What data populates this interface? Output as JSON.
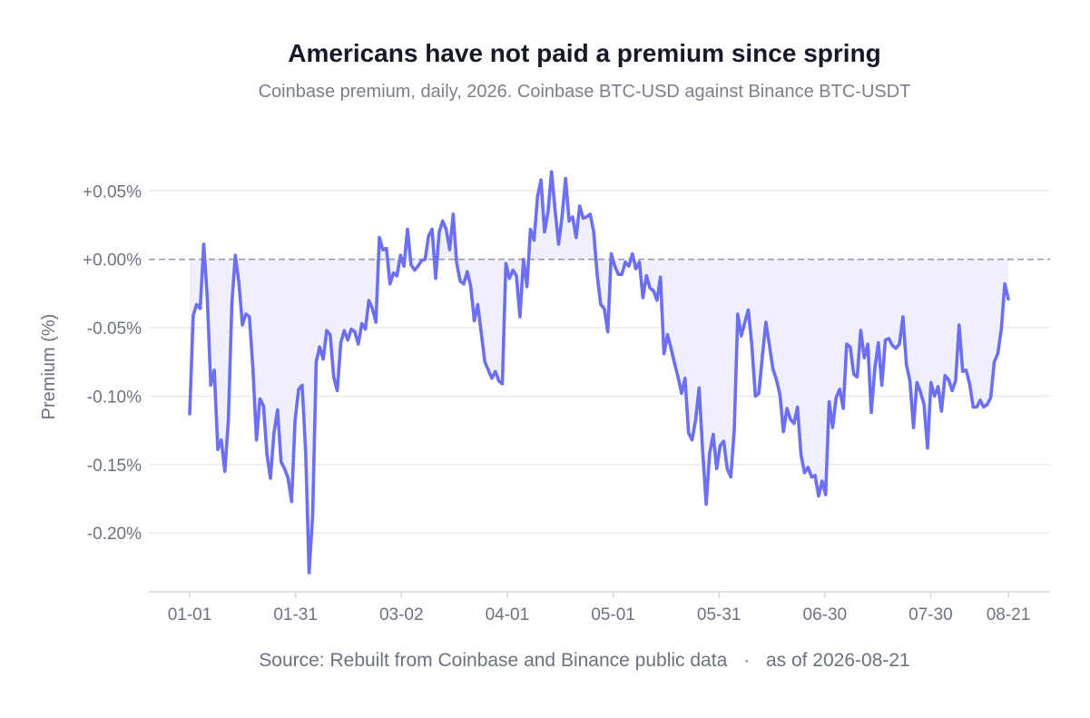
{
  "chart_data": {
    "type": "area",
    "title": "Americans have not paid a premium since spring",
    "subtitle": "Coinbase premium, daily, 2026. Coinbase BTC-USD against Binance BTC-USDT",
    "xlabel": "",
    "ylabel": "Premium (%)",
    "source": "Source: Rebuilt from Coinbase and Binance public data",
    "as_of": "as of 2026-08-21",
    "source_separator": "·",
    "x_start": "2026-01-01",
    "x_end": "2026-08-21",
    "xlim": [
      "2026-01-01",
      "2026-08-21"
    ],
    "ylim": [
      -0.243,
      0.09
    ],
    "x_ticks": [
      {
        "date": "2026-01-01",
        "label": "01-01"
      },
      {
        "date": "2026-01-31",
        "label": "01-31"
      },
      {
        "date": "2026-03-02",
        "label": "03-02"
      },
      {
        "date": "2026-04-01",
        "label": "04-01"
      },
      {
        "date": "2026-05-01",
        "label": "05-01"
      },
      {
        "date": "2026-05-31",
        "label": "05-31"
      },
      {
        "date": "2026-06-30",
        "label": "06-30"
      },
      {
        "date": "2026-07-30",
        "label": "07-30"
      },
      {
        "date": "2026-08-21",
        "label": "08-21"
      }
    ],
    "y_ticks": [
      {
        "value": 0.05,
        "label": "+0.05%"
      },
      {
        "value": 0.0,
        "label": "+0.00%"
      },
      {
        "value": -0.05,
        "label": "-0.05%"
      },
      {
        "value": -0.1,
        "label": "-0.10%"
      },
      {
        "value": -0.15,
        "label": "-0.15%"
      },
      {
        "value": -0.2,
        "label": "-0.20%"
      }
    ],
    "grid": true,
    "reference_line": 0,
    "colors": {
      "line": "#6c6ff0",
      "fill": "#f0f0fc",
      "zero_line": "#9a9ab2",
      "grid": "#e9eaee",
      "axis": "#d5d7dc",
      "tick_text": "#6b7280",
      "title": "#151a26",
      "subtitle": "#7b7f8a"
    },
    "series": [
      {
        "values": [
          -0.113,
          -0.041,
          -0.033,
          -0.036,
          0.011,
          -0.028,
          -0.092,
          -0.081,
          -0.139,
          -0.132,
          -0.155,
          -0.118,
          -0.032,
          0.003,
          -0.017,
          -0.048,
          -0.04,
          -0.042,
          -0.08,
          -0.132,
          -0.102,
          -0.107,
          -0.143,
          -0.16,
          -0.127,
          -0.11,
          -0.148,
          -0.153,
          -0.16,
          -0.177,
          -0.118,
          -0.095,
          -0.092,
          -0.141,
          -0.229,
          -0.187,
          -0.075,
          -0.064,
          -0.073,
          -0.052,
          -0.055,
          -0.086,
          -0.096,
          -0.061,
          -0.052,
          -0.059,
          -0.051,
          -0.053,
          -0.062,
          -0.047,
          -0.051,
          -0.03,
          -0.036,
          -0.046,
          0.016,
          0.007,
          0.008,
          -0.018,
          -0.01,
          -0.012,
          0.003,
          -0.005,
          0.022,
          -0.004,
          -0.008,
          -0.005,
          -0.001,
          0.0,
          0.017,
          0.022,
          -0.014,
          0.02,
          0.028,
          0.022,
          0.007,
          0.033,
          -0.003,
          -0.016,
          -0.018,
          -0.009,
          -0.02,
          -0.045,
          -0.033,
          -0.054,
          -0.075,
          -0.081,
          -0.087,
          -0.082,
          -0.089,
          -0.091,
          -0.003,
          -0.014,
          -0.008,
          -0.012,
          -0.042,
          0.0,
          -0.02,
          0.022,
          0.014,
          0.046,
          0.058,
          0.02,
          0.035,
          0.064,
          0.036,
          0.011,
          0.032,
          0.059,
          0.028,
          0.031,
          0.016,
          0.039,
          0.03,
          0.031,
          0.033,
          0.02,
          -0.012,
          -0.033,
          -0.036,
          -0.053,
          0.004,
          -0.005,
          -0.011,
          -0.011,
          -0.002,
          -0.005,
          0.004,
          -0.007,
          -0.002,
          -0.028,
          -0.012,
          -0.021,
          -0.023,
          -0.03,
          -0.013,
          -0.069,
          -0.055,
          -0.065,
          -0.076,
          -0.086,
          -0.098,
          -0.087,
          -0.127,
          -0.132,
          -0.117,
          -0.094,
          -0.14,
          -0.179,
          -0.142,
          -0.128,
          -0.153,
          -0.136,
          -0.133,
          -0.153,
          -0.159,
          -0.125,
          -0.04,
          -0.056,
          -0.046,
          -0.037,
          -0.063,
          -0.1,
          -0.098,
          -0.071,
          -0.046,
          -0.063,
          -0.08,
          -0.088,
          -0.099,
          -0.126,
          -0.109,
          -0.117,
          -0.12,
          -0.108,
          -0.143,
          -0.156,
          -0.152,
          -0.159,
          -0.158,
          -0.173,
          -0.162,
          -0.172,
          -0.104,
          -0.123,
          -0.101,
          -0.095,
          -0.109,
          -0.062,
          -0.064,
          -0.084,
          -0.086,
          -0.052,
          -0.072,
          -0.062,
          -0.112,
          -0.08,
          -0.061,
          -0.092,
          -0.059,
          -0.058,
          -0.063,
          -0.065,
          -0.062,
          -0.042,
          -0.077,
          -0.089,
          -0.123,
          -0.09,
          -0.097,
          -0.106,
          -0.138,
          -0.09,
          -0.1,
          -0.093,
          -0.111,
          -0.085,
          -0.088,
          -0.096,
          -0.089,
          -0.048,
          -0.082,
          -0.081,
          -0.091,
          -0.108,
          -0.108,
          -0.103,
          -0.108,
          -0.106,
          -0.101,
          -0.075,
          -0.069,
          -0.051,
          -0.018,
          -0.029
        ]
      }
    ]
  }
}
